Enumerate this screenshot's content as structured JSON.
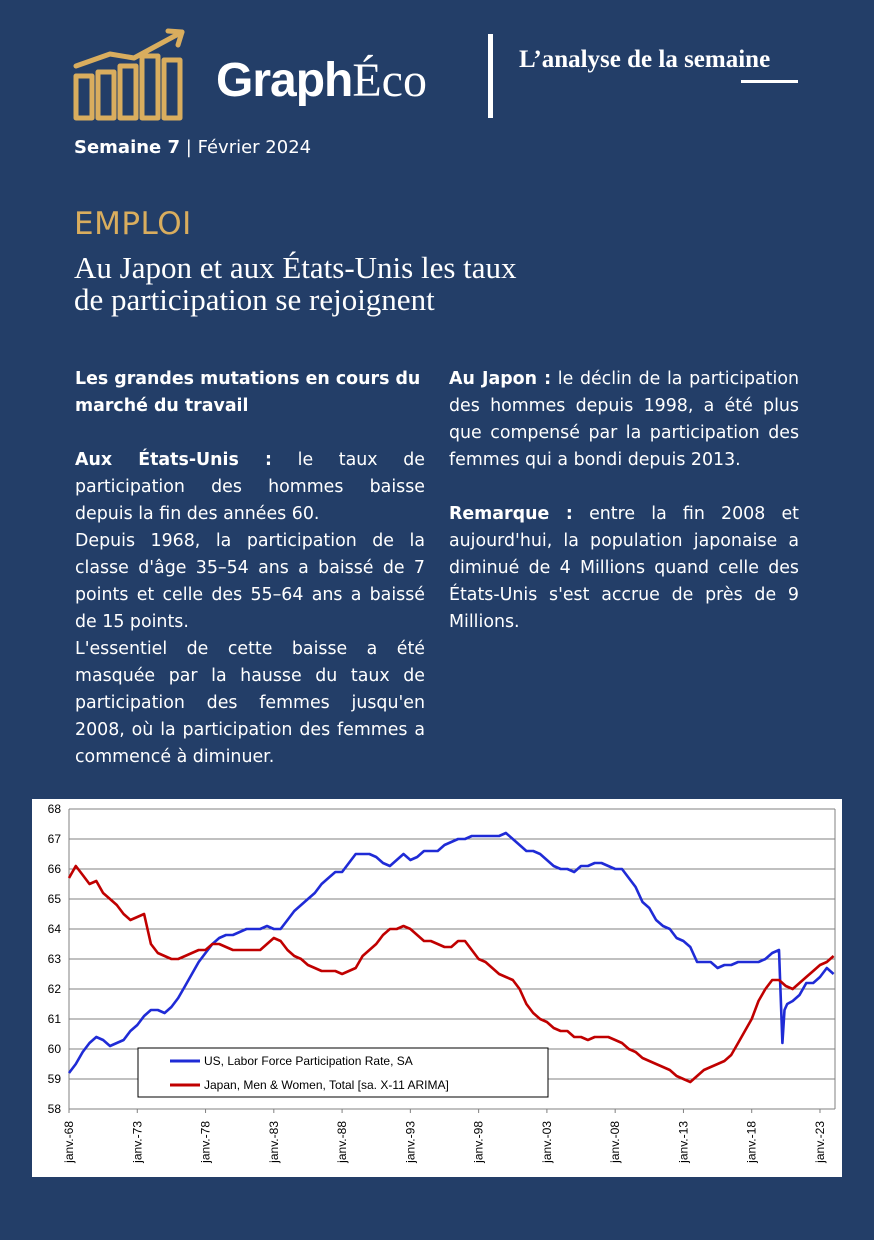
{
  "header": {
    "brand_graph": "Graph",
    "brand_eco": "Éco",
    "tagline": "L’analyse de la semaine",
    "logo_icon": "bar-chart-trend-icon",
    "accent_color": "#d9ad5e"
  },
  "issue": {
    "week": "Semaine 7",
    "separator": "|",
    "date": "Février 2024"
  },
  "article": {
    "section": "EMPLOI",
    "title_line1": "Au Japon et aux États-Unis les taux",
    "title_line2": "de participation se rejoignent",
    "subtitle": "Les grandes mutations en cours du marché du travail",
    "us_label": "Aux États-Unis :",
    "us_text1": " le taux de participation des hommes baisse depuis la fin des années 60.",
    "us_text2": "Depuis 1968, la participation de la classe d'âge 35–54 ans a baissé de 7 points et celle des 55–64 ans a baissé de 15 points.",
    "us_text3": "L'essentiel de cette baisse a été masquée par la hausse du taux de participation des femmes jusqu'en 2008, où la participation des femmes a commencé à diminuer.",
    "jp_label": "Au Japon :",
    "jp_text": " le déclin de la participation des hommes depuis 1998, a été plus que compensé par la participation des femmes qui a bondi depuis 2013.",
    "note_label": "Remarque :",
    "note_text": " entre la fin 2008 et aujourd'hui, la population japonaise a diminué de 4 Millions quand celle des États-Unis s'est accrue de près de 9 Millions."
  },
  "chart_data": {
    "type": "line",
    "title": "",
    "xlabel": "",
    "ylabel": "",
    "ylim": [
      58,
      68
    ],
    "yticks": [
      58,
      59,
      60,
      61,
      62,
      63,
      64,
      65,
      66,
      67,
      68
    ],
    "xlim": [
      1968.0,
      2024.1
    ],
    "xticks": [
      {
        "x": 1968,
        "label": "janv.-68"
      },
      {
        "x": 1973,
        "label": "janv.-73"
      },
      {
        "x": 1978,
        "label": "janv.-78"
      },
      {
        "x": 1983,
        "label": "janv.-83"
      },
      {
        "x": 1988,
        "label": "janv.-88"
      },
      {
        "x": 1993,
        "label": "janv.-93"
      },
      {
        "x": 1998,
        "label": "janv.-98"
      },
      {
        "x": 2003,
        "label": "janv.-03"
      },
      {
        "x": 2008,
        "label": "janv.-08"
      },
      {
        "x": 2013,
        "label": "janv.-13"
      },
      {
        "x": 2018,
        "label": "janv.-18"
      },
      {
        "x": 2023,
        "label": "janv.-23"
      }
    ],
    "grid": true,
    "legend_position": "bottom-left",
    "series": [
      {
        "name": "US, Labor Force Participation Rate, SA",
        "color": "#1f2bd6",
        "x": [
          1968.0,
          1968.5,
          1969.0,
          1969.5,
          1970.0,
          1970.5,
          1971.0,
          1971.5,
          1972.0,
          1972.5,
          1973.0,
          1973.5,
          1974.0,
          1974.5,
          1975.0,
          1975.5,
          1976.0,
          1976.5,
          1977.0,
          1977.5,
          1978.0,
          1978.5,
          1979.0,
          1979.5,
          1980.0,
          1980.5,
          1981.0,
          1981.5,
          1982.0,
          1982.5,
          1983.0,
          1983.5,
          1984.0,
          1984.5,
          1985.0,
          1985.5,
          1986.0,
          1986.5,
          1987.0,
          1987.5,
          1988.0,
          1988.5,
          1989.0,
          1989.5,
          1990.0,
          1990.5,
          1991.0,
          1991.5,
          1992.0,
          1992.5,
          1993.0,
          1993.5,
          1994.0,
          1994.5,
          1995.0,
          1995.5,
          1996.0,
          1996.5,
          1997.0,
          1997.5,
          1998.0,
          1998.5,
          1999.0,
          1999.5,
          2000.0,
          2000.5,
          2001.0,
          2001.5,
          2002.0,
          2002.5,
          2003.0,
          2003.5,
          2004.0,
          2004.5,
          2005.0,
          2005.5,
          2006.0,
          2006.5,
          2007.0,
          2007.5,
          2008.0,
          2008.5,
          2009.0,
          2009.5,
          2010.0,
          2010.5,
          2011.0,
          2011.5,
          2012.0,
          2012.5,
          2013.0,
          2013.5,
          2014.0,
          2014.5,
          2015.0,
          2015.5,
          2016.0,
          2016.5,
          2017.0,
          2017.5,
          2018.0,
          2018.5,
          2019.0,
          2019.5,
          2020.0,
          2020.25,
          2020.4,
          2020.6,
          2021.0,
          2021.5,
          2022.0,
          2022.5,
          2023.0,
          2023.5,
          2024.0
        ],
        "values": [
          59.2,
          59.5,
          59.9,
          60.2,
          60.4,
          60.3,
          60.1,
          60.2,
          60.3,
          60.6,
          60.8,
          61.1,
          61.3,
          61.3,
          61.2,
          61.4,
          61.7,
          62.1,
          62.5,
          62.9,
          63.2,
          63.5,
          63.7,
          63.8,
          63.8,
          63.9,
          64.0,
          64.0,
          64.0,
          64.1,
          64.0,
          64.0,
          64.3,
          64.6,
          64.8,
          65.0,
          65.2,
          65.5,
          65.7,
          65.9,
          65.9,
          66.2,
          66.5,
          66.5,
          66.5,
          66.4,
          66.2,
          66.1,
          66.3,
          66.5,
          66.3,
          66.4,
          66.6,
          66.6,
          66.6,
          66.8,
          66.9,
          67.0,
          67.0,
          67.1,
          67.1,
          67.1,
          67.1,
          67.1,
          67.2,
          67.0,
          66.8,
          66.6,
          66.6,
          66.5,
          66.3,
          66.1,
          66.0,
          66.0,
          65.9,
          66.1,
          66.1,
          66.2,
          66.2,
          66.1,
          66.0,
          66.0,
          65.7,
          65.4,
          64.9,
          64.7,
          64.3,
          64.1,
          64.0,
          63.7,
          63.6,
          63.4,
          62.9,
          62.9,
          62.9,
          62.7,
          62.8,
          62.8,
          62.9,
          62.9,
          62.9,
          62.9,
          63.0,
          63.2,
          63.3,
          60.2,
          61.3,
          61.5,
          61.6,
          61.8,
          62.2,
          62.2,
          62.4,
          62.7,
          62.5
        ]
      },
      {
        "name": "Japan, Men & Women, Total [sa. X-11 ARIMA]",
        "color": "#c00000",
        "x": [
          1968.0,
          1968.5,
          1969.0,
          1969.5,
          1970.0,
          1970.5,
          1971.0,
          1971.5,
          1972.0,
          1972.5,
          1973.0,
          1973.5,
          1974.0,
          1974.5,
          1975.0,
          1975.5,
          1976.0,
          1976.5,
          1977.0,
          1977.5,
          1978.0,
          1978.5,
          1979.0,
          1979.5,
          1980.0,
          1980.5,
          1981.0,
          1981.5,
          1982.0,
          1982.5,
          1983.0,
          1983.5,
          1984.0,
          1984.5,
          1985.0,
          1985.5,
          1986.0,
          1986.5,
          1987.0,
          1987.5,
          1988.0,
          1988.5,
          1989.0,
          1989.5,
          1990.0,
          1990.5,
          1991.0,
          1991.5,
          1992.0,
          1992.5,
          1993.0,
          1993.5,
          1994.0,
          1994.5,
          1995.0,
          1995.5,
          1996.0,
          1996.5,
          1997.0,
          1997.5,
          1998.0,
          1998.5,
          1999.0,
          1999.5,
          2000.0,
          2000.5,
          2001.0,
          2001.5,
          2002.0,
          2002.5,
          2003.0,
          2003.5,
          2004.0,
          2004.5,
          2005.0,
          2005.5,
          2006.0,
          2006.5,
          2007.0,
          2007.5,
          2008.0,
          2008.5,
          2009.0,
          2009.5,
          2010.0,
          2010.5,
          2011.0,
          2011.5,
          2012.0,
          2012.5,
          2013.0,
          2013.5,
          2014.0,
          2014.5,
          2015.0,
          2015.5,
          2016.0,
          2016.5,
          2017.0,
          2017.5,
          2018.0,
          2018.5,
          2019.0,
          2019.5,
          2020.0,
          2020.5,
          2021.0,
          2021.5,
          2022.0,
          2022.5,
          2023.0,
          2023.5,
          2024.0
        ],
        "values": [
          65.7,
          66.1,
          65.8,
          65.5,
          65.6,
          65.2,
          65.0,
          64.8,
          64.5,
          64.3,
          64.4,
          64.5,
          63.5,
          63.2,
          63.1,
          63.0,
          63.0,
          63.1,
          63.2,
          63.3,
          63.3,
          63.5,
          63.5,
          63.4,
          63.3,
          63.3,
          63.3,
          63.3,
          63.3,
          63.5,
          63.7,
          63.6,
          63.3,
          63.1,
          63.0,
          62.8,
          62.7,
          62.6,
          62.6,
          62.6,
          62.5,
          62.6,
          62.7,
          63.1,
          63.3,
          63.5,
          63.8,
          64.0,
          64.0,
          64.1,
          64.0,
          63.8,
          63.6,
          63.6,
          63.5,
          63.4,
          63.4,
          63.6,
          63.6,
          63.3,
          63.0,
          62.9,
          62.7,
          62.5,
          62.4,
          62.3,
          62.0,
          61.5,
          61.2,
          61.0,
          60.9,
          60.7,
          60.6,
          60.6,
          60.4,
          60.4,
          60.3,
          60.4,
          60.4,
          60.4,
          60.3,
          60.2,
          60.0,
          59.9,
          59.7,
          59.6,
          59.5,
          59.4,
          59.3,
          59.1,
          59.0,
          58.9,
          59.1,
          59.3,
          59.4,
          59.5,
          59.6,
          59.8,
          60.2,
          60.6,
          61.0,
          61.6,
          62.0,
          62.3,
          62.3,
          62.1,
          62.0,
          62.2,
          62.4,
          62.6,
          62.8,
          62.9,
          63.1
        ]
      }
    ]
  }
}
